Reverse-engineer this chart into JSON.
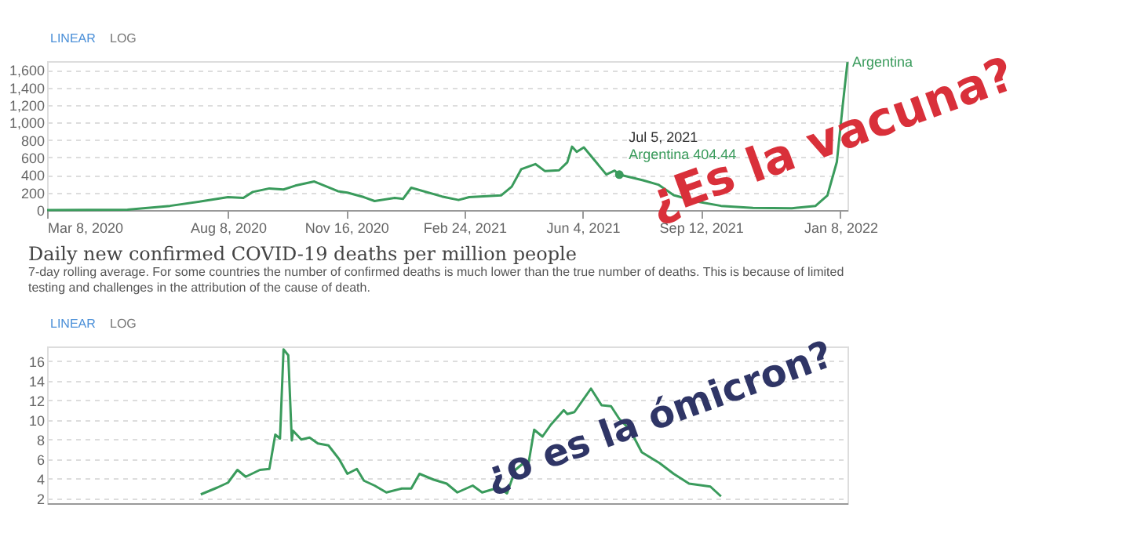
{
  "chart_data": [
    {
      "type": "line",
      "tick_labels": true,
      "grid": "y",
      "marker": "none",
      "line_style": "solid",
      "annotations": [
        "LINEAR",
        "LOG",
        {
          "text": "Jul 5, 2021",
          "x": "2021-07-05",
          "y": 404.44
        },
        {
          "text": "Argentina 404.44",
          "x": "2021-07-05",
          "y": 404.44
        },
        "¿Es la vacuna?"
      ],
      "xlim": [
        "2020-03-08",
        "2022-01-14"
      ],
      "xticks": [
        {
          "value": "2020-03-08",
          "label": "Mar 8, 2020"
        },
        {
          "value": "2020-08-08",
          "label": "Aug 8, 2020"
        },
        {
          "value": "2020-11-16",
          "label": "Nov 16, 2020"
        },
        {
          "value": "2021-02-24",
          "label": "Feb 24, 2021"
        },
        {
          "value": "2021-06-04",
          "label": "Jun 4, 2021"
        },
        {
          "value": "2021-09-12",
          "label": "Sep 12, 2021"
        },
        {
          "value": "2022-01-08",
          "label": "Jan 8, 2022"
        }
      ],
      "ylim": [
        0,
        1700
      ],
      "yticks": [
        0,
        {
          "value": 200,
          "label": "200"
        },
        {
          "value": 400,
          "label": "400"
        },
        {
          "value": 600,
          "label": "600"
        },
        {
          "value": 800,
          "label": "800"
        },
        {
          "value": 1000,
          "label": "1,000"
        },
        {
          "value": 1200,
          "label": "1,200"
        },
        {
          "value": 1400,
          "label": "1,400"
        },
        {
          "value": 1600,
          "label": "1,600"
        }
      ],
      "series": [
        {
          "name": "Argentina",
          "color": "#3a9b5c",
          "x": [
            "2020-03-08",
            "2020-05-15",
            "2020-06-20",
            "2020-07-20",
            "2020-08-08",
            "2020-08-21",
            "2020-08-29",
            "2020-09-12",
            "2020-09-24",
            "2020-10-04",
            "2020-10-20",
            "2020-11-09",
            "2020-11-17",
            "2020-12-01",
            "2020-12-10",
            "2020-12-27",
            "2021-01-03",
            "2021-01-10",
            "2021-02-05",
            "2021-02-19",
            "2021-02-28",
            "2021-03-27",
            "2021-04-05",
            "2021-04-13",
            "2021-04-25",
            "2021-05-03",
            "2021-05-15",
            "2021-05-22",
            "2021-05-26",
            "2021-05-30",
            "2021-06-05",
            "2021-06-24",
            "2021-07-01",
            "2021-07-05",
            "2021-07-25",
            "2021-08-07",
            "2021-08-20",
            "2021-09-09",
            "2021-09-29",
            "2021-10-26",
            "2021-11-28",
            "2021-12-18",
            "2021-12-28",
            "2022-01-05",
            "2022-01-10",
            "2022-01-14"
          ],
          "values": [
            0,
            5,
            48,
            107,
            147,
            139,
            207,
            247,
            235,
            279,
            326,
            215,
            199,
            147,
            103,
            139,
            127,
            255,
            155,
            115,
            147,
            167,
            267,
            466,
            525,
            446,
            454,
            545,
            724,
            665,
            716,
            406,
            450,
            404.44,
            340,
            290,
            170,
            96,
            48,
            24,
            20,
            48,
            167,
            550,
            1200,
            1690
          ]
        }
      ]
    },
    {
      "type": "line",
      "tick_labels": "y",
      "grid": "y",
      "marker": "none",
      "line_style": "solid",
      "title": "Daily new confirmed COVID-19 deaths per million people",
      "subtitle": "7-day rolling average. For some countries the number of confirmed deaths is much lower than the true number of deaths. This is because of limited testing and challenges in the attribution of the cause of death.",
      "annotations": [
        "LINEAR",
        "LOG",
        "¿o es la ómicron?"
      ],
      "xlim": [
        "2020-03-08",
        "2022-01-14"
      ],
      "ylim": [
        1.5,
        17.5
      ],
      "yticks": [
        2,
        4,
        6,
        8,
        10,
        12,
        14,
        16
      ],
      "series": [
        {
          "color": "#3a9b5c",
          "x": [
            "2020-07-16",
            "2020-07-30",
            "2020-08-08",
            "2020-08-16",
            "2020-08-23",
            "2020-09-04",
            "2020-09-12",
            "2020-09-17",
            "2020-09-21",
            "2020-09-24",
            "2020-09-28",
            "2020-10-01",
            "2020-10-02",
            "2020-10-09",
            "2020-10-16",
            "2020-10-23",
            "2020-11-01",
            "2020-11-10",
            "2020-11-17",
            "2020-11-25",
            "2020-12-01",
            "2020-12-10",
            "2020-12-20",
            "2021-01-02",
            "2021-01-10",
            "2021-01-17",
            "2021-01-29",
            "2021-02-09",
            "2021-02-18",
            "2021-03-03",
            "2021-03-11",
            "2021-03-25",
            "2021-04-01",
            "2021-04-08",
            "2021-04-15",
            "2021-04-18",
            "2021-04-24",
            "2021-05-01",
            "2021-05-08",
            "2021-05-19",
            "2021-05-22",
            "2021-05-28",
            "2021-06-11",
            "2021-06-20",
            "2021-06-28",
            "2021-07-05",
            "2021-07-14",
            "2021-07-24",
            "2021-08-08",
            "2021-08-20",
            "2021-09-02",
            "2021-09-20",
            "2021-09-29"
          ],
          "values": [
            2.4,
            3.1,
            3.6,
            4.9,
            4.2,
            4.9,
            5.0,
            8.5,
            8.1,
            17.2,
            16.6,
            7.9,
            8.9,
            8.0,
            8.2,
            7.6,
            7.4,
            6.0,
            4.5,
            5.0,
            3.8,
            3.3,
            2.6,
            3.0,
            3.0,
            4.5,
            3.9,
            3.5,
            2.6,
            3.3,
            2.6,
            3.1,
            2.5,
            4.9,
            5.6,
            4.7,
            9.0,
            8.3,
            9.5,
            11.0,
            10.6,
            10.8,
            13.2,
            11.5,
            11.4,
            10.1,
            9.0,
            6.7,
            5.6,
            4.5,
            3.5,
            3.2,
            2.2
          ]
        }
      ]
    }
  ]
}
